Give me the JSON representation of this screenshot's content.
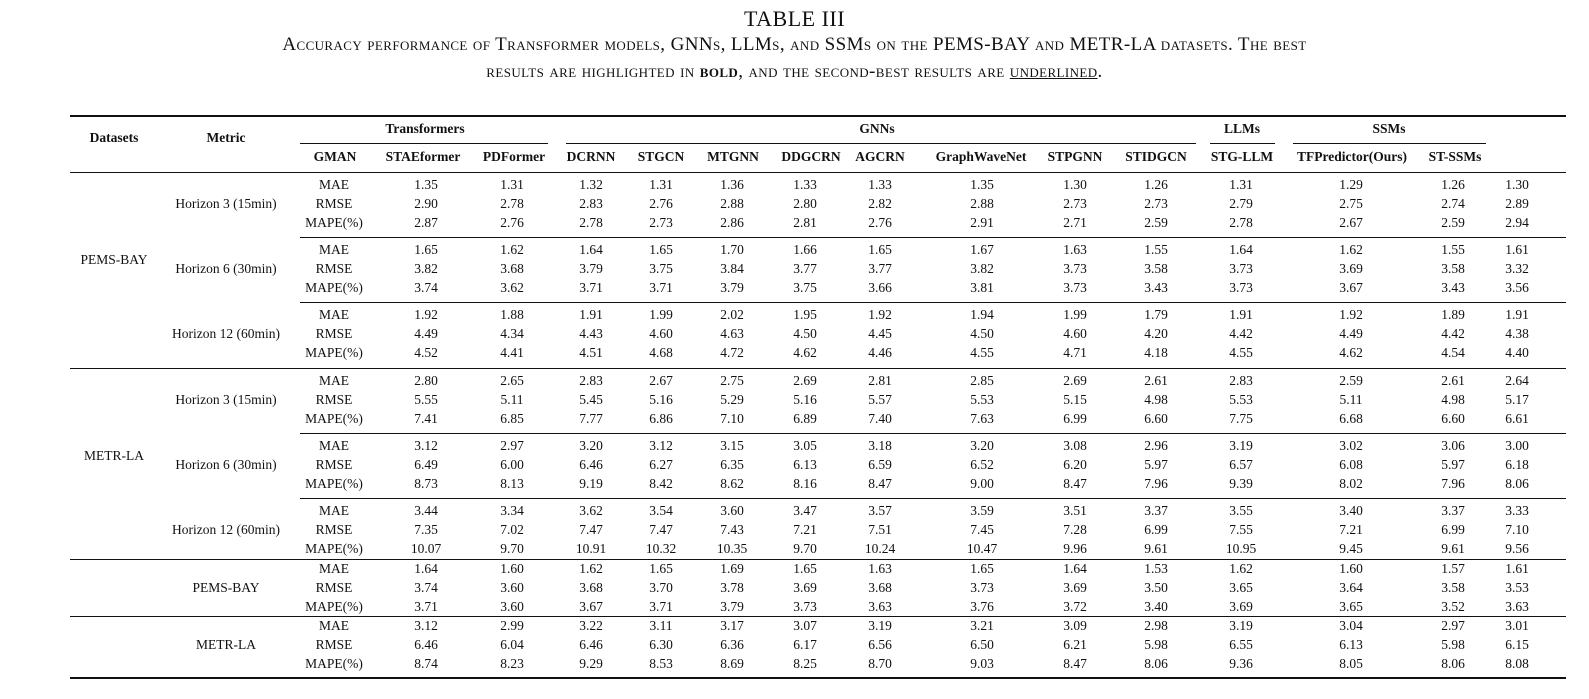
{
  "caption": {
    "title": "TABLE III",
    "line1": "Accuracy performance of Transformer models, GNNs, LLMs, and SSMs on the PEMS-BAY and METR-LA datasets. The best",
    "line2_a": "results are highlighted in ",
    "line2_bold": "bold",
    "line2_b": ", and the second-best results are ",
    "line2_ul": "underlined",
    "line2_c": "."
  },
  "header": {
    "datasets": "Datasets",
    "metric": "Metric",
    "groups": [
      "Transformers",
      "GNNs",
      "LLMs",
      "SSMs"
    ],
    "models": [
      "GMAN",
      "STAEformer",
      "PDFormer",
      "DCRNN",
      "STGCN",
      "MTGNN",
      "DDGCRN",
      "AGCRN",
      "GraphWaveNet",
      "STPGNN",
      "STIDGCN",
      "STG-LLM",
      "TFPredictor(Ours)",
      "ST-SSMs"
    ]
  },
  "blocks": [
    {
      "dataset": "PEMS-BAY",
      "horizon": "Horizon 3 (15min)",
      "rows": [
        {
          "metric": "MAE",
          "values": [
            "1.35",
            "1.31",
            "1.32",
            "1.31",
            "1.36",
            "1.33",
            "1.33",
            "1.35",
            "1.30",
            "1.26",
            "1.31",
            "1.29",
            "1.26",
            "1.30"
          ]
        },
        {
          "metric": "RMSE",
          "values": [
            "2.90",
            "2.78",
            "2.83",
            "2.76",
            "2.88",
            "2.80",
            "2.82",
            "2.88",
            "2.73",
            "2.73",
            "2.79",
            "2.75",
            "2.74",
            "2.89"
          ]
        },
        {
          "metric": "MAPE(%)",
          "values": [
            "2.87",
            "2.76",
            "2.78",
            "2.73",
            "2.86",
            "2.81",
            "2.76",
            "2.91",
            "2.71",
            "2.59",
            "2.78",
            "2.67",
            "2.59",
            "2.94"
          ]
        }
      ]
    },
    {
      "dataset": "PEMS-BAY",
      "horizon": "Horizon 6 (30min)",
      "rows": [
        {
          "metric": "MAE",
          "values": [
            "1.65",
            "1.62",
            "1.64",
            "1.65",
            "1.70",
            "1.66",
            "1.65",
            "1.67",
            "1.63",
            "1.55",
            "1.64",
            "1.62",
            "1.55",
            "1.61"
          ]
        },
        {
          "metric": "RMSE",
          "values": [
            "3.82",
            "3.68",
            "3.79",
            "3.75",
            "3.84",
            "3.77",
            "3.77",
            "3.82",
            "3.73",
            "3.58",
            "3.73",
            "3.69",
            "3.58",
            "3.32"
          ]
        },
        {
          "metric": "MAPE(%)",
          "values": [
            "3.74",
            "3.62",
            "3.71",
            "3.71",
            "3.79",
            "3.75",
            "3.66",
            "3.81",
            "3.73",
            "3.43",
            "3.73",
            "3.67",
            "3.43",
            "3.56"
          ]
        }
      ]
    },
    {
      "dataset": "PEMS-BAY",
      "horizon": "Horizon 12 (60min)",
      "rows": [
        {
          "metric": "MAE",
          "values": [
            "1.92",
            "1.88",
            "1.91",
            "1.99",
            "2.02",
            "1.95",
            "1.92",
            "1.94",
            "1.99",
            "1.79",
            "1.91",
            "1.92",
            "1.89",
            "1.91"
          ]
        },
        {
          "metric": "RMSE",
          "values": [
            "4.49",
            "4.34",
            "4.43",
            "4.60",
            "4.63",
            "4.50",
            "4.45",
            "4.50",
            "4.60",
            "4.20",
            "4.42",
            "4.49",
            "4.42",
            "4.38"
          ]
        },
        {
          "metric": "MAPE(%)",
          "values": [
            "4.52",
            "4.41",
            "4.51",
            "4.68",
            "4.72",
            "4.62",
            "4.46",
            "4.55",
            "4.71",
            "4.18",
            "4.55",
            "4.62",
            "4.54",
            "4.40"
          ]
        }
      ]
    },
    {
      "dataset": "METR-LA",
      "horizon": "Horizon 3 (15min)",
      "rows": [
        {
          "metric": "MAE",
          "values": [
            "2.80",
            "2.65",
            "2.83",
            "2.67",
            "2.75",
            "2.69",
            "2.81",
            "2.85",
            "2.69",
            "2.61",
            "2.83",
            "2.59",
            "2.61",
            "2.64"
          ]
        },
        {
          "metric": "RMSE",
          "values": [
            "5.55",
            "5.11",
            "5.45",
            "5.16",
            "5.29",
            "5.16",
            "5.57",
            "5.53",
            "5.15",
            "4.98",
            "5.53",
            "5.11",
            "4.98",
            "5.17"
          ]
        },
        {
          "metric": "MAPE(%)",
          "values": [
            "7.41",
            "6.85",
            "7.77",
            "6.86",
            "7.10",
            "6.89",
            "7.40",
            "7.63",
            "6.99",
            "6.60",
            "7.75",
            "6.68",
            "6.60",
            "6.61"
          ]
        }
      ]
    },
    {
      "dataset": "METR-LA",
      "horizon": "Horizon 6 (30min)",
      "rows": [
        {
          "metric": "MAE",
          "values": [
            "3.12",
            "2.97",
            "3.20",
            "3.12",
            "3.15",
            "3.05",
            "3.18",
            "3.20",
            "3.08",
            "2.96",
            "3.19",
            "3.02",
            "3.06",
            "3.00"
          ]
        },
        {
          "metric": "RMSE",
          "values": [
            "6.49",
            "6.00",
            "6.46",
            "6.27",
            "6.35",
            "6.13",
            "6.59",
            "6.52",
            "6.20",
            "5.97",
            "6.57",
            "6.08",
            "5.97",
            "6.18"
          ]
        },
        {
          "metric": "MAPE(%)",
          "values": [
            "8.73",
            "8.13",
            "9.19",
            "8.42",
            "8.62",
            "8.16",
            "8.47",
            "9.00",
            "8.47",
            "7.96",
            "9.39",
            "8.02",
            "7.96",
            "8.06"
          ]
        }
      ]
    },
    {
      "dataset": "METR-LA",
      "horizon": "Horizon 12 (60min)",
      "rows": [
        {
          "metric": "MAE",
          "values": [
            "3.44",
            "3.34",
            "3.62",
            "3.54",
            "3.60",
            "3.47",
            "3.57",
            "3.59",
            "3.51",
            "3.37",
            "3.55",
            "3.40",
            "3.37",
            "3.33"
          ]
        },
        {
          "metric": "RMSE",
          "values": [
            "7.35",
            "7.02",
            "7.47",
            "7.47",
            "7.43",
            "7.21",
            "7.51",
            "7.45",
            "7.28",
            "6.99",
            "7.55",
            "7.21",
            "6.99",
            "7.10"
          ]
        },
        {
          "metric": "MAPE(%)",
          "values": [
            "10.07",
            "9.70",
            "10.91",
            "10.32",
            "10.35",
            "9.70",
            "10.24",
            "10.47",
            "9.96",
            "9.61",
            "10.95",
            "9.45",
            "9.61",
            "9.56"
          ]
        }
      ]
    },
    {
      "dataset": "",
      "horizon": "PEMS-BAY",
      "rows": [
        {
          "metric": "MAE",
          "values": [
            "1.64",
            "1.60",
            "1.62",
            "1.65",
            "1.69",
            "1.65",
            "1.63",
            "1.65",
            "1.64",
            "1.53",
            "1.62",
            "1.60",
            "1.57",
            "1.61"
          ]
        },
        {
          "metric": "RMSE",
          "values": [
            "3.74",
            "3.60",
            "3.68",
            "3.70",
            "3.78",
            "3.69",
            "3.68",
            "3.73",
            "3.69",
            "3.50",
            "3.65",
            "3.64",
            "3.58",
            "3.53"
          ]
        },
        {
          "metric": "MAPE(%)",
          "values": [
            "3.71",
            "3.60",
            "3.67",
            "3.71",
            "3.79",
            "3.73",
            "3.63",
            "3.76",
            "3.72",
            "3.40",
            "3.69",
            "3.65",
            "3.52",
            "3.63"
          ]
        }
      ]
    },
    {
      "dataset": "",
      "horizon": "METR-LA",
      "rows": [
        {
          "metric": "MAE",
          "values": [
            "3.12",
            "2.99",
            "3.22",
            "3.11",
            "3.17",
            "3.07",
            "3.19",
            "3.21",
            "3.09",
            "2.98",
            "3.19",
            "3.04",
            "2.97",
            "3.01"
          ]
        },
        {
          "metric": "RMSE",
          "values": [
            "6.46",
            "6.04",
            "6.46",
            "6.30",
            "6.36",
            "6.17",
            "6.56",
            "6.50",
            "6.21",
            "5.98",
            "6.55",
            "6.13",
            "5.98",
            "6.15"
          ]
        },
        {
          "metric": "MAPE(%)",
          "values": [
            "8.74",
            "8.23",
            "9.29",
            "8.53",
            "8.69",
            "8.25",
            "8.70",
            "9.03",
            "8.47",
            "8.06",
            "9.36",
            "8.05",
            "8.06",
            "8.08"
          ]
        }
      ]
    }
  ]
}
